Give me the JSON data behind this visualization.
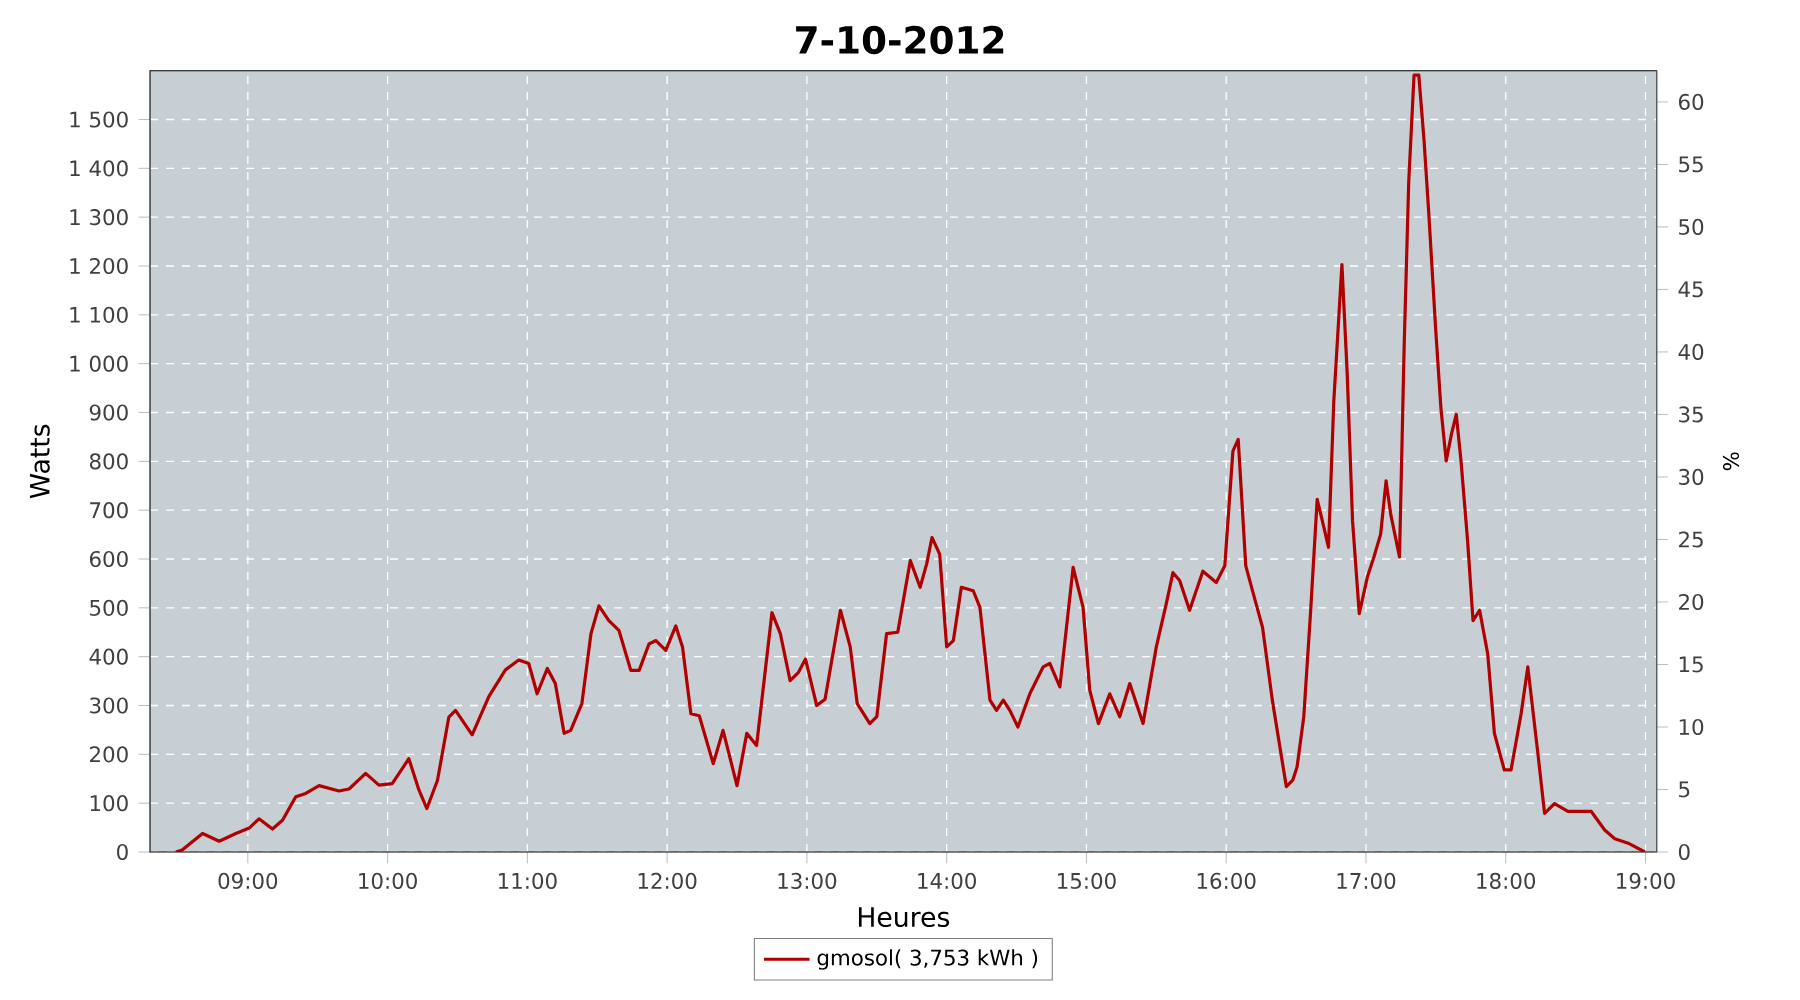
{
  "chart_data": {
    "type": "line",
    "title": "7-10-2012",
    "xlabel": "Heures",
    "ylabel": "Watts",
    "y2label": "%",
    "x": [
      8.486,
      8.53,
      8.676,
      8.795,
      8.914,
      9.01,
      9.08,
      9.176,
      9.248,
      9.343,
      9.414,
      9.51,
      9.652,
      9.724,
      9.843,
      9.938,
      10.033,
      10.152,
      10.224,
      10.281,
      10.357,
      10.438,
      10.486,
      10.605,
      10.724,
      10.843,
      10.938,
      11.01,
      11.07,
      11.143,
      11.2,
      11.263,
      11.31,
      11.39,
      11.455,
      11.512,
      11.583,
      11.655,
      11.74,
      11.8,
      11.87,
      11.92,
      11.99,
      12.062,
      12.11,
      12.17,
      12.23,
      12.33,
      12.4,
      12.5,
      12.57,
      12.64,
      12.75,
      12.81,
      12.88,
      12.94,
      12.99,
      13.07,
      13.13,
      13.24,
      13.31,
      13.36,
      13.45,
      13.5,
      13.57,
      13.65,
      13.74,
      13.81,
      13.857,
      13.895,
      13.95,
      14.0,
      14.048,
      14.105,
      14.19,
      14.238,
      14.31,
      14.357,
      14.405,
      14.452,
      14.51,
      14.595,
      14.69,
      14.738,
      14.81,
      14.905,
      14.976,
      15.024,
      15.086,
      15.167,
      15.238,
      15.31,
      15.405,
      15.5,
      15.571,
      15.619,
      15.667,
      15.738,
      15.833,
      15.929,
      15.99,
      16.048,
      16.086,
      16.14,
      16.214,
      16.26,
      16.33,
      16.43,
      16.476,
      16.507,
      16.555,
      16.603,
      16.651,
      16.699,
      16.732,
      16.77,
      16.828,
      16.866,
      16.904,
      16.952,
      17.01,
      17.057,
      17.105,
      17.144,
      17.177,
      17.24,
      17.273,
      17.306,
      17.344,
      17.378,
      17.416,
      17.45,
      17.498,
      17.536,
      17.574,
      17.612,
      17.646,
      17.68,
      17.727,
      17.766,
      17.813,
      17.871,
      17.919,
      17.99,
      18.038,
      18.11,
      18.158,
      18.23,
      18.278,
      18.349,
      18.445,
      18.612,
      18.708,
      18.78,
      18.876,
      18.995
    ],
    "series": [
      {
        "name": "gmosol( 3,753 kWh )",
        "color": "#b00000",
        "values": [
          0,
          4,
          38,
          22,
          38,
          49,
          68,
          47,
          65,
          113,
          120,
          136,
          125,
          129,
          161,
          137,
          140,
          191,
          127,
          89,
          147,
          276,
          290,
          240,
          318,
          373,
          393,
          386,
          324,
          376,
          345,
          243,
          249,
          304,
          447,
          504,
          474,
          454,
          372,
          372,
          426,
          433,
          413,
          463,
          420,
          283,
          279,
          181,
          249,
          136,
          243,
          218,
          490,
          447,
          351,
          368,
          395,
          300,
          313,
          495,
          420,
          304,
          263,
          277,
          447,
          450,
          597,
          542,
          590,
          644,
          610,
          420,
          433,
          542,
          535,
          501,
          311,
          290,
          311,
          290,
          256,
          324,
          379,
          386,
          338,
          583,
          501,
          331,
          263,
          324,
          277,
          345,
          263,
          420,
          508,
          572,
          556,
          495,
          575,
          552,
          586,
          821,
          845,
          586,
          508,
          460,
          311,
          134,
          147,
          174,
          277,
          488,
          722,
          665,
          624,
          924,
          1203,
          978,
          678,
          488,
          563,
          604,
          651,
          760,
          692,
          604,
          1033,
          1373,
          1591,
          1591,
          1455,
          1305,
          1074,
          910,
          801,
          856,
          896,
          801,
          638,
          474,
          495,
          406,
          243,
          168,
          168,
          283,
          379,
          202,
          79,
          99,
          83,
          83,
          45,
          27,
          18,
          0
        ]
      }
    ],
    "xlim": [
      8.3,
      19.08
    ],
    "ylim": [
      0,
      1600
    ],
    "y2lim": [
      0,
      62.5
    ],
    "xticks": [
      {
        "value": 9,
        "label": "09:00"
      },
      {
        "value": 10,
        "label": "10:00"
      },
      {
        "value": 11,
        "label": "11:00"
      },
      {
        "value": 12,
        "label": "12:00"
      },
      {
        "value": 13,
        "label": "13:00"
      },
      {
        "value": 14,
        "label": "14:00"
      },
      {
        "value": 15,
        "label": "15:00"
      },
      {
        "value": 16,
        "label": "16:00"
      },
      {
        "value": 17,
        "label": "17:00"
      },
      {
        "value": 18,
        "label": "18:00"
      },
      {
        "value": 19,
        "label": "19:00"
      }
    ],
    "yticks": [
      0,
      100,
      200,
      300,
      400,
      500,
      600,
      700,
      800,
      900,
      {
        "value": 1000,
        "label": "1 000"
      },
      {
        "value": 1100,
        "label": "1 100"
      },
      {
        "value": 1200,
        "label": "1 200"
      },
      {
        "value": 1300,
        "label": "1 300"
      },
      {
        "value": 1400,
        "label": "1 400"
      },
      {
        "value": 1500,
        "label": "1 500"
      }
    ],
    "y2ticks": [
      0,
      5,
      10,
      15,
      20,
      25,
      30,
      35,
      40,
      45,
      50,
      55,
      60
    ],
    "grid": true,
    "legend": "bottom"
  }
}
